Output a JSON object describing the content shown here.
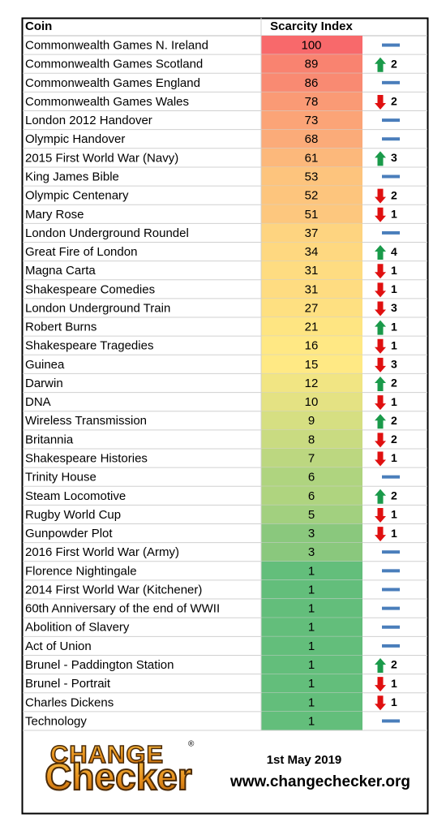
{
  "table": {
    "header": [
      "Coin",
      "Scarcity Index"
    ],
    "rows": [
      {
        "coin": "Commonwealth Games N. Ireland",
        "index": 100,
        "color": "#f8696b",
        "move": "same"
      },
      {
        "coin": "Commonwealth Games Scotland",
        "index": 89,
        "color": "#f98370",
        "move": "up",
        "change": 2
      },
      {
        "coin": "Commonwealth Games England",
        "index": 86,
        "color": "#f98a72",
        "move": "same"
      },
      {
        "coin": "Commonwealth Games Wales",
        "index": 78,
        "color": "#fa9a75",
        "move": "down",
        "change": 2
      },
      {
        "coin": "London 2012 Handover",
        "index": 73,
        "color": "#fba477",
        "move": "same"
      },
      {
        "coin": "Olympic Handover",
        "index": 68,
        "color": "#fbab79",
        "move": "same"
      },
      {
        "coin": "2015 First World War (Navy)",
        "index": 61,
        "color": "#fcb87b",
        "move": "up",
        "change": 3
      },
      {
        "coin": "King James Bible",
        "index": 53,
        "color": "#fdc47d",
        "move": "same"
      },
      {
        "coin": "Olympic Centenary",
        "index": 52,
        "color": "#fdc57d",
        "move": "down",
        "change": 2
      },
      {
        "coin": "Mary Rose",
        "index": 51,
        "color": "#fdc77e",
        "move": "down",
        "change": 1
      },
      {
        "coin": "London Underground Roundel",
        "index": 37,
        "color": "#fed480",
        "move": "same"
      },
      {
        "coin": "Great Fire of London",
        "index": 34,
        "color": "#fed880",
        "move": "up",
        "change": 4
      },
      {
        "coin": "Magna Carta",
        "index": 31,
        "color": "#fedc81",
        "move": "down",
        "change": 1
      },
      {
        "coin": "Shakespeare Comedies",
        "index": 31,
        "color": "#fedc81",
        "move": "down",
        "change": 1
      },
      {
        "coin": "London Underground Train",
        "index": 27,
        "color": "#fee081",
        "move": "down",
        "change": 3
      },
      {
        "coin": "Robert Burns",
        "index": 21,
        "color": "#fee582",
        "move": "up",
        "change": 1
      },
      {
        "coin": "Shakespeare Tragedies",
        "index": 16,
        "color": "#ffe884",
        "move": "down",
        "change": 1
      },
      {
        "coin": "Guinea",
        "index": 15,
        "color": "#ffe984",
        "move": "down",
        "change": 3
      },
      {
        "coin": "Darwin",
        "index": 12,
        "color": "#f1e583",
        "move": "up",
        "change": 2
      },
      {
        "coin": "DNA",
        "index": 10,
        "color": "#e4e283",
        "move": "down",
        "change": 1
      },
      {
        "coin": "Wireless Transmission",
        "index": 9,
        "color": "#d6df82",
        "move": "up",
        "change": 2
      },
      {
        "coin": "Britannia",
        "index": 8,
        "color": "#c9db81",
        "move": "down",
        "change": 2
      },
      {
        "coin": "Shakespeare Histories",
        "index": 7,
        "color": "#bcd780",
        "move": "down",
        "change": 1
      },
      {
        "coin": "Trinity House",
        "index": 6,
        "color": "#afd47f",
        "move": "same"
      },
      {
        "coin": "Steam Locomotive",
        "index": 6,
        "color": "#afd47f",
        "move": "up",
        "change": 2
      },
      {
        "coin": "Rugby World Cup",
        "index": 5,
        "color": "#a2d07f",
        "move": "down",
        "change": 1
      },
      {
        "coin": "Gunpowder Plot",
        "index": 3,
        "color": "#8ac87d",
        "move": "down",
        "change": 1
      },
      {
        "coin": "2016 First World War (Army)",
        "index": 3,
        "color": "#8ac87d",
        "move": "same"
      },
      {
        "coin": "Florence Nightingale",
        "index": 1,
        "color": "#63be7b",
        "move": "same"
      },
      {
        "coin": "2014 First World War (Kitchener)",
        "index": 1,
        "color": "#63be7b",
        "move": "same"
      },
      {
        "coin": "60th Anniversary of the end of WWII",
        "index": 1,
        "color": "#63be7b",
        "move": "same"
      },
      {
        "coin": "Abolition of Slavery",
        "index": 1,
        "color": "#63be7b",
        "move": "same"
      },
      {
        "coin": "Act of Union",
        "index": 1,
        "color": "#63be7b",
        "move": "same"
      },
      {
        "coin": "Brunel - Paddington Station",
        "index": 1,
        "color": "#63be7b",
        "move": "up",
        "change": 2
      },
      {
        "coin": "Brunel - Portrait",
        "index": 1,
        "color": "#63be7b",
        "move": "down",
        "change": 1
      },
      {
        "coin": "Charles Dickens",
        "index": 1,
        "color": "#63be7b",
        "move": "down",
        "change": 1
      },
      {
        "coin": "Technology",
        "index": 1,
        "color": "#63be7b",
        "move": "same"
      }
    ]
  },
  "footer": {
    "logo_top": "CHANGE",
    "logo_bottom": "Checker",
    "registered": "®",
    "date": "1st May 2019",
    "url": "www.changechecker.org"
  }
}
